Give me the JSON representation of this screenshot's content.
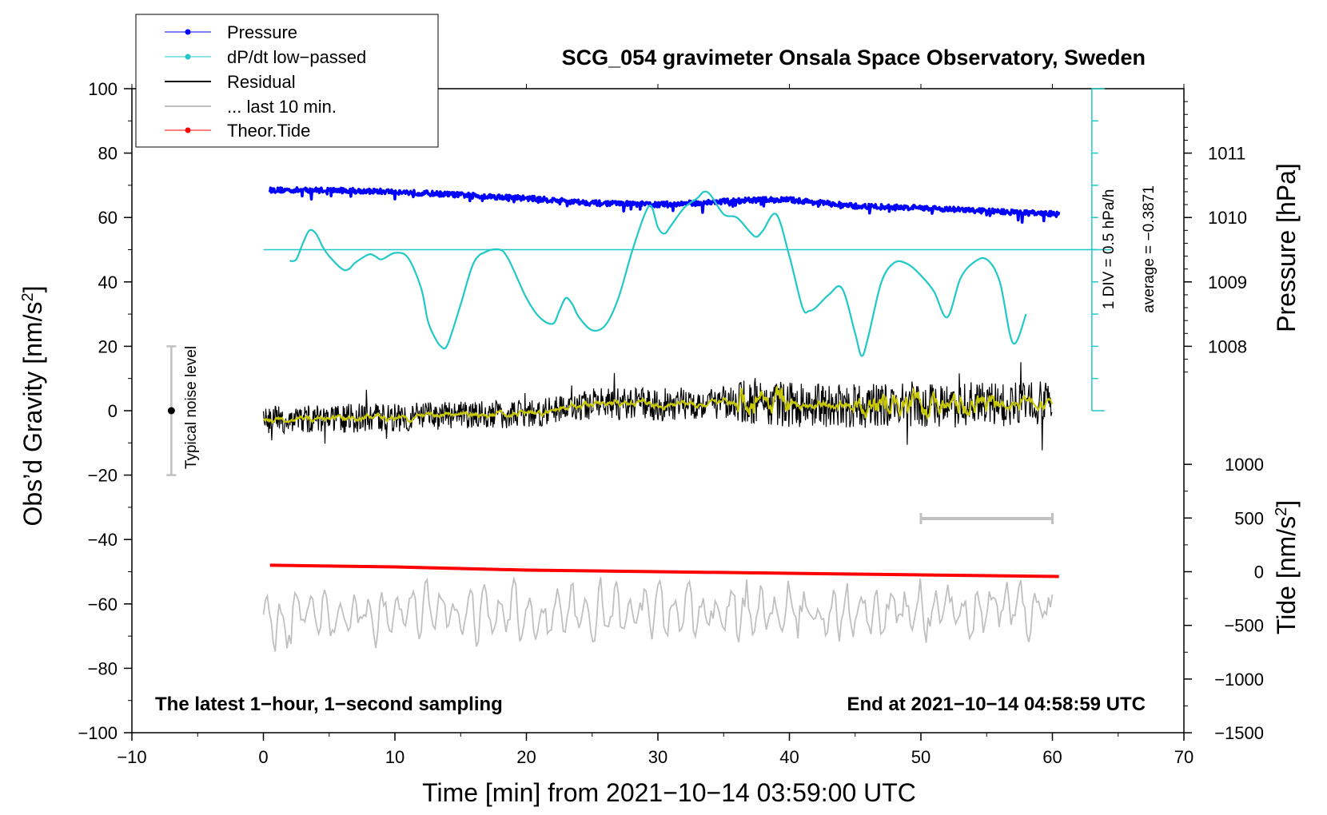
{
  "chart_data": {
    "type": "line",
    "title": "SCG_054 gravimeter Onsala Space Observatory, Sweden",
    "xlabel": "Time [min] from 2021−10−14 03:59:00 UTC",
    "ylabel": "Obs’d Gravity [nm/s",
    "ylabel_sup": "2",
    "ylabel_close": "]",
    "y2label": "Pressure [hPa]",
    "y3label": "Tide [nm/s",
    "y3label_sup": "2",
    "y3label_close": "]",
    "xlim": [
      -10,
      70
    ],
    "ylim": [
      -100,
      100
    ],
    "x_ticks": [
      -10,
      0,
      10,
      20,
      30,
      40,
      50,
      60,
      70
    ],
    "x_tick_labels": [
      "−10",
      "0",
      "10",
      "20",
      "30",
      "40",
      "50",
      "60",
      "70"
    ],
    "y_ticks": [
      100,
      80,
      60,
      40,
      20,
      0,
      -20,
      -40,
      -60,
      -80,
      -100
    ],
    "y_tick_labels": [
      "100",
      "80",
      "60",
      "40",
      "20",
      "0",
      "−20",
      "−40",
      "−60",
      "−80",
      "−100"
    ],
    "pressure_axis": {
      "gravity_at_1008": 20,
      "gravity_per_hpa": 20,
      "ticks": [
        1011,
        1010,
        1009,
        1008
      ],
      "tick_labels": [
        "1011",
        "1010",
        "1009",
        "1008"
      ]
    },
    "tide_axis": {
      "gravity_at_0": -50,
      "gravity_per_500": 16.67,
      "ticks": [
        1000,
        500,
        0,
        -500,
        -1000,
        -1500
      ],
      "tick_labels": [
        "1000",
        "500",
        "0",
        "−500",
        "−1000",
        "−1500"
      ]
    },
    "legend": [
      {
        "label": "Pressure",
        "color": "#0000ff",
        "marker": true
      },
      {
        "label": "dP/dt low−passed",
        "color": "#20c8c8",
        "marker": true
      },
      {
        "label": "Residual",
        "color": "#000000",
        "marker": false
      },
      {
        "label": "... last 10 min.",
        "color": "#c0c0c0",
        "marker": false
      },
      {
        "label": "Theor.Tide",
        "color": "#ff0000",
        "marker": true
      }
    ],
    "series": [
      {
        "name": "Pressure",
        "color": "#0000ff",
        "x": [
          0.5,
          5,
          10,
          15,
          20,
          25,
          30,
          33,
          35,
          38,
          40,
          45,
          50,
          55,
          60.5
        ],
        "y": [
          68.5,
          68.5,
          68,
          67,
          66,
          64.5,
          64,
          64.5,
          65,
          65.5,
          65.5,
          63.5,
          63,
          62,
          61
        ]
      },
      {
        "name": "dP/dt low−passed",
        "color": "#20c8c8",
        "x": [
          2,
          2.5,
          3,
          3.5,
          4,
          4.5,
          5,
          6,
          6.5,
          7,
          8,
          8.5,
          9,
          10,
          11,
          12,
          12.5,
          13,
          13.5,
          14,
          15,
          16,
          17,
          18,
          18.5,
          19,
          20,
          21,
          22,
          22.5,
          23,
          23.5,
          24,
          25,
          26,
          27,
          28,
          29,
          29.5,
          30,
          30.5,
          31,
          32,
          33,
          33.5,
          34,
          35,
          36,
          37,
          37.5,
          38,
          39,
          40,
          41,
          41.5,
          42,
          43,
          44,
          45,
          45.5,
          46,
          47,
          48,
          49,
          50,
          51,
          52,
          53,
          54,
          55,
          56,
          57,
          58
        ],
        "y": [
          46.5,
          47,
          52,
          56,
          55,
          51,
          48,
          44,
          44,
          46,
          48.5,
          48,
          47,
          49,
          47.5,
          38,
          28,
          23,
          20,
          20.5,
          33,
          46,
          49.5,
          50,
          48,
          44,
          35,
          29,
          27,
          31,
          35,
          33,
          29,
          25,
          26.5,
          35,
          49,
          61,
          63.5,
          57,
          55,
          57.5,
          63,
          66,
          68,
          67,
          61,
          60,
          55.5,
          54,
          56,
          61,
          48,
          32,
          31,
          32,
          36,
          38,
          24,
          17,
          23,
          40,
          46,
          45.5,
          42,
          37,
          29,
          41,
          46,
          47,
          40,
          21,
          30
        ]
      },
      {
        "name": "Residual",
        "color": "#000000",
        "x": [
          0,
          5,
          10,
          15,
          20,
          25,
          30,
          35,
          40,
          45,
          50,
          55,
          60
        ],
        "y": [
          -3,
          -2.5,
          -2,
          -1.5,
          -1,
          2,
          2,
          2.5,
          2,
          1.5,
          1.5,
          2,
          2.5
        ]
      },
      {
        "name": "... last 10 min.",
        "color": "#c0c0c0",
        "x": [
          0,
          5,
          10,
          15,
          20,
          25,
          30,
          35,
          40,
          45,
          50,
          55,
          60
        ],
        "y": [
          -65,
          -63,
          -63,
          -63,
          -64,
          -63,
          -62,
          -62,
          -63,
          -63,
          -62,
          -61,
          -63
        ]
      },
      {
        "name": "Theor.Tide",
        "color": "#ff0000",
        "x": [
          0.5,
          10,
          20,
          30,
          40,
          50,
          60.5
        ],
        "y": [
          -48,
          -48.5,
          -49.5,
          -50,
          -50.5,
          -51,
          -51.5
        ]
      }
    ],
    "dpdt_scale": {
      "baseline_y": 50,
      "bar_top_y": 100,
      "bar_bottom_y": 0,
      "label1": "1 DIV = 0.5 hPa/h",
      "label2": "average = −0.3871"
    },
    "noise_level": {
      "x": -7,
      "center_y": 0,
      "low_y": -20,
      "high_y": 20,
      "label": "Typical noise level"
    },
    "last10_bracket": {
      "x_start": 50,
      "x_end": 60,
      "y": -33.5
    },
    "annotations": {
      "bottom_left": "The latest 1−hour, 1−second sampling",
      "bottom_right": "End at 2021−10−14 04:58:59 UTC"
    }
  }
}
